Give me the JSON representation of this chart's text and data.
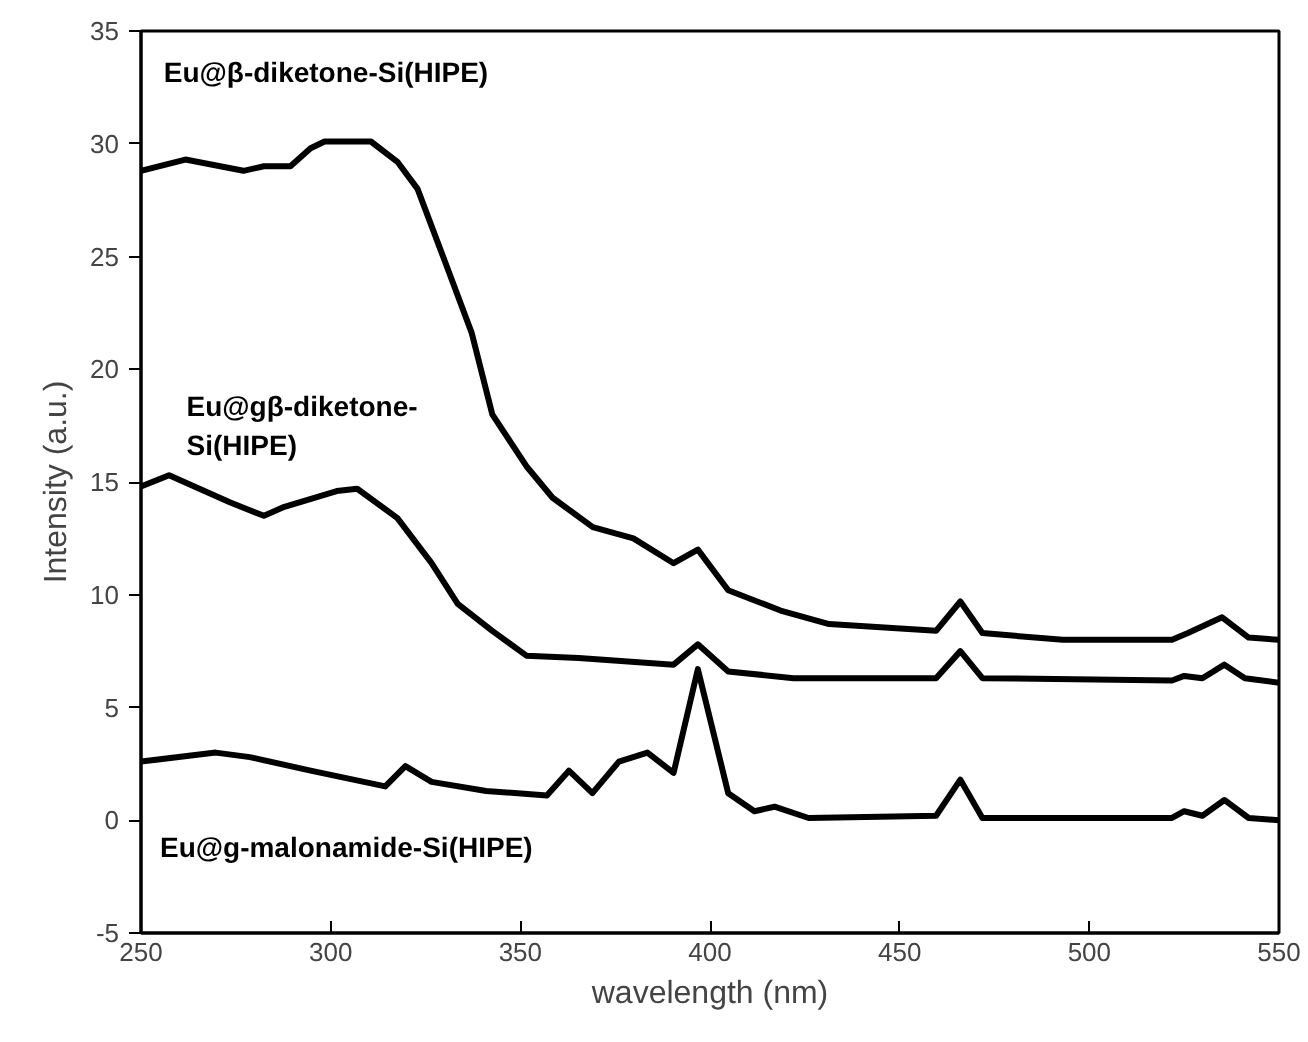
{
  "chart_data": {
    "type": "line",
    "xlabel": "wavelength (nm)",
    "ylabel": "Intensity (a.u.)",
    "xlim": [
      250,
      550
    ],
    "xticks": [
      250,
      300,
      350,
      400,
      450,
      500,
      550
    ],
    "ylim": [
      -5,
      35
    ],
    "yticks": [
      -5,
      0,
      5,
      10,
      15,
      20,
      25,
      30,
      35
    ],
    "marker": "none",
    "line_style": "solid",
    "series": [
      {
        "name": "Eu@β-diketone-Si(HIPE)",
        "color": "#000000",
        "x": [
          250,
          261.7,
          277,
          282.4,
          289.4,
          294.7,
          298.4,
          310.6,
          317.6,
          322.9,
          330.3,
          337.2,
          342.6,
          351.6,
          358.5,
          369.1,
          379.8,
          390.4,
          396.8,
          404.8,
          418.6,
          431.4,
          459.6,
          466,
          471.8,
          493,
          521.8,
          526,
          535,
          542,
          550
        ],
        "values": [
          28.8,
          29.3,
          28.8,
          29.0,
          29.0,
          29.8,
          30.1,
          30.1,
          29.2,
          28.0,
          24.7,
          21.6,
          18.0,
          15.7,
          14.3,
          13.0,
          12.5,
          11.4,
          12.0,
          10.2,
          9.3,
          8.7,
          8.4,
          9.7,
          8.3,
          8.0,
          8.0,
          8.3,
          9.0,
          8.1,
          8.0
        ]
      },
      {
        "name": "Eu@gβ-diketone-Si(HIPE)",
        "color": "#000000",
        "x": [
          250,
          257.4,
          273.4,
          282.4,
          287.8,
          301.6,
          307,
          317.6,
          326.6,
          333.5,
          342.6,
          351.6,
          365.4,
          390.4,
          396.8,
          404.8,
          422,
          459.6,
          466,
          471.8,
          521.8,
          525,
          529.8,
          535.6,
          541,
          550
        ],
        "values": [
          14.8,
          15.3,
          14.1,
          13.5,
          13.9,
          14.6,
          14.7,
          13.4,
          11.4,
          9.6,
          8.4,
          7.3,
          7.2,
          6.9,
          7.8,
          6.6,
          6.3,
          6.3,
          7.5,
          6.3,
          6.2,
          6.4,
          6.3,
          6.9,
          6.3,
          6.1
        ]
      },
      {
        "name": "Eu@g-malonamide-Si(HIPE)",
        "color": "#000000",
        "x": [
          250,
          269.7,
          278.7,
          294.7,
          314.4,
          319.7,
          326.6,
          341,
          357,
          362.8,
          369,
          376,
          383.5,
          390.4,
          396.8,
          404.8,
          411.7,
          417,
          426,
          459.6,
          466,
          471.8,
          521.8,
          525,
          529.8,
          535.6,
          542,
          550
        ],
        "values": [
          2.6,
          3.0,
          2.8,
          2.2,
          1.5,
          2.4,
          1.7,
          1.3,
          1.1,
          2.2,
          1.2,
          2.6,
          3.0,
          2.1,
          6.7,
          1.2,
          0.4,
          0.6,
          0.1,
          0.2,
          1.8,
          0.1,
          0.1,
          0.4,
          0.2,
          0.9,
          0.1,
          0.0
        ]
      }
    ]
  }
}
